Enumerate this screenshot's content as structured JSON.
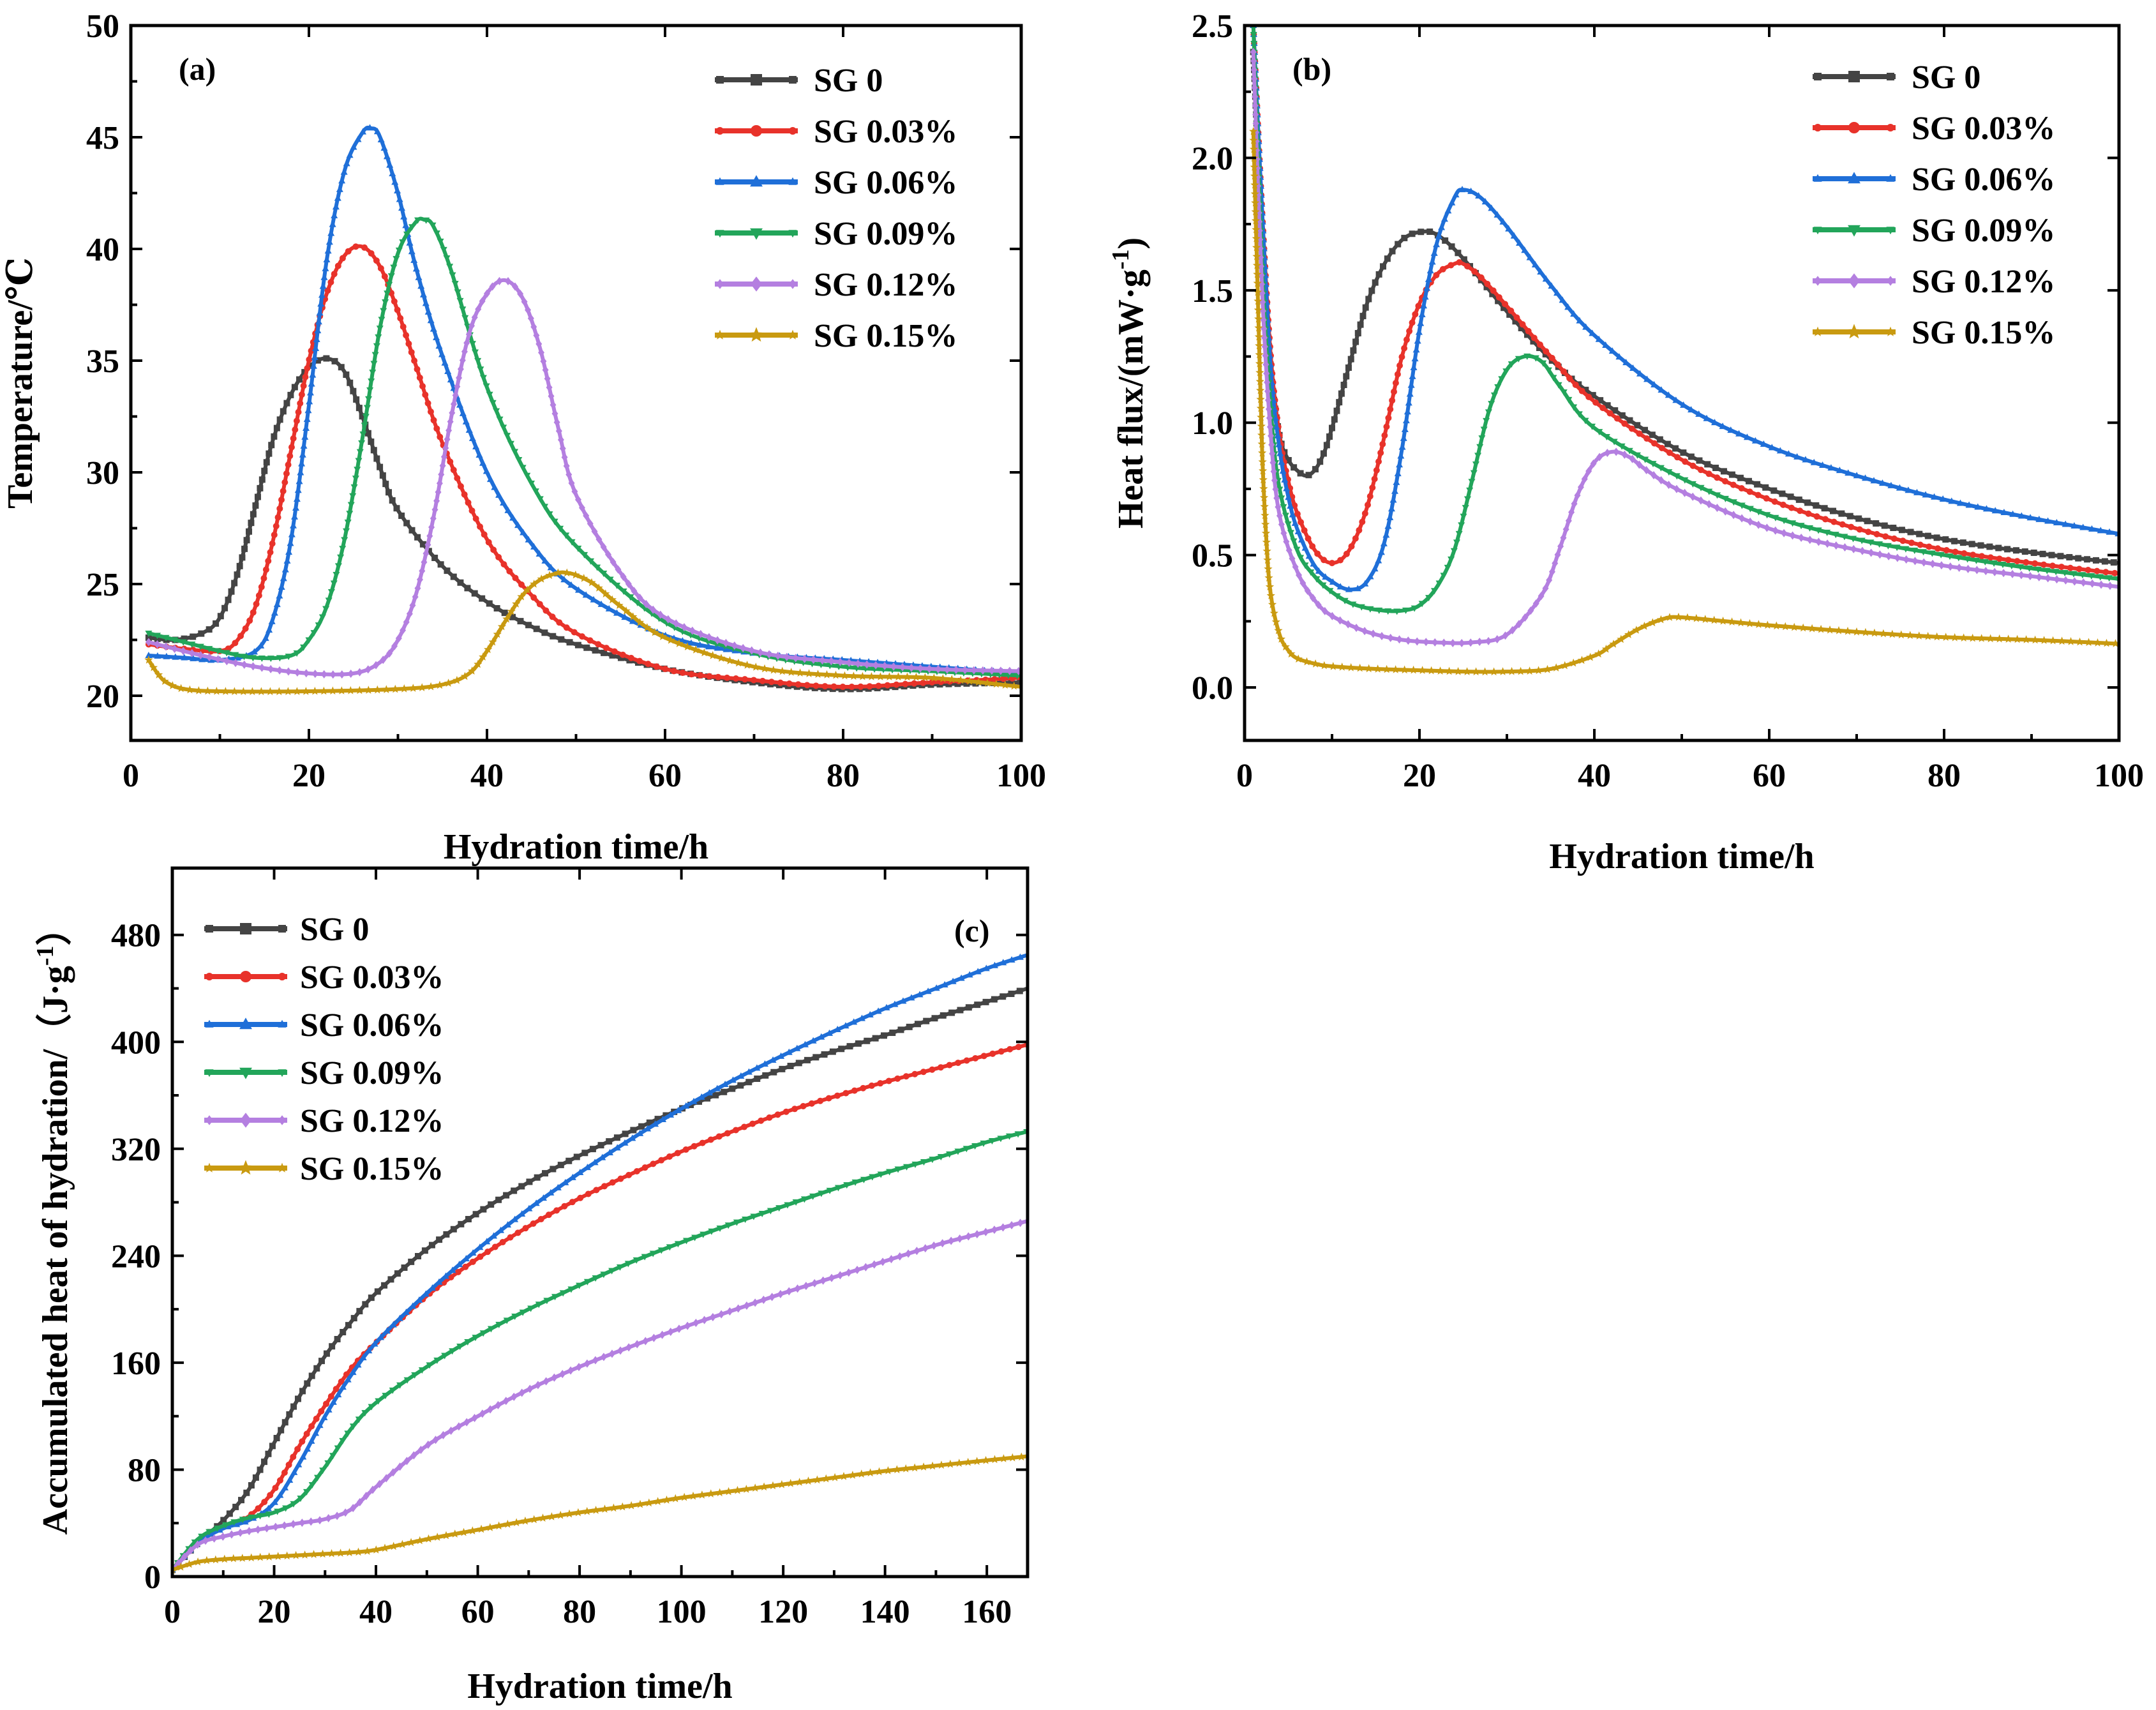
{
  "chart_data": [
    {
      "type": "line",
      "panel_label": "(a)",
      "xlabel": "Hydration time/h",
      "ylabel": "Temperature/℃",
      "xlim": [
        0,
        100
      ],
      "ylim": [
        18,
        50
      ],
      "xticks": [
        0,
        20,
        40,
        60,
        80,
        100
      ],
      "yticks": [
        20,
        25,
        30,
        35,
        40,
        45,
        50
      ],
      "legend_position": "top-right",
      "series": [
        {
          "name": "SG 0",
          "color": "#444444",
          "marker": "square",
          "x": [
            2,
            5,
            8,
            10,
            12,
            14,
            16,
            18,
            20,
            22,
            24,
            26,
            28,
            30,
            35,
            40,
            45,
            50,
            60,
            70,
            80,
            90,
            100
          ],
          "y": [
            22.6,
            22.5,
            22.8,
            23.5,
            25.5,
            28.5,
            31.5,
            33.5,
            34.7,
            35.1,
            34.5,
            32.5,
            30.2,
            28.3,
            25.8,
            24.2,
            23.1,
            22.3,
            21.2,
            20.6,
            20.3,
            20.5,
            20.6
          ]
        },
        {
          "name": "SG 0.03%",
          "color": "#e8322a",
          "marker": "circle",
          "x": [
            2,
            6,
            10,
            12,
            14,
            16,
            18,
            20,
            22,
            24,
            26,
            28,
            30,
            32,
            35,
            40,
            45,
            50,
            60,
            70,
            80,
            90,
            100
          ],
          "y": [
            22.3,
            22.1,
            22.0,
            22.5,
            24.0,
            27.0,
            31.0,
            35.0,
            38.0,
            39.7,
            40.1,
            39.2,
            37.2,
            34.8,
            31.3,
            27.0,
            24.5,
            22.8,
            21.2,
            20.7,
            20.4,
            20.6,
            20.8
          ]
        },
        {
          "name": "SG 0.06%",
          "color": "#1f6fd8",
          "marker": "triangle",
          "x": [
            2,
            6,
            10,
            14,
            16,
            18,
            20,
            22,
            24,
            26,
            27,
            28,
            30,
            32,
            35,
            40,
            45,
            50,
            60,
            70,
            80,
            90,
            100
          ],
          "y": [
            21.8,
            21.7,
            21.6,
            22.0,
            23.5,
            27.0,
            33.0,
            39.5,
            43.5,
            45.2,
            45.4,
            45.0,
            42.5,
            39.2,
            35.2,
            30.0,
            26.8,
            24.8,
            22.7,
            21.9,
            21.6,
            21.3,
            21.0
          ]
        },
        {
          "name": "SG 0.09%",
          "color": "#22a55a",
          "marker": "triangle-down",
          "x": [
            2,
            6,
            10,
            14,
            18,
            20,
            22,
            24,
            26,
            28,
            30,
            32,
            33,
            34,
            36,
            40,
            45,
            50,
            60,
            70,
            80,
            90,
            100
          ],
          "y": [
            22.8,
            22.4,
            22.0,
            21.7,
            21.8,
            22.5,
            24.0,
            27.0,
            31.5,
            36.5,
            39.8,
            41.2,
            41.3,
            41.0,
            39.0,
            33.8,
            29.5,
            26.7,
            23.3,
            21.9,
            21.3,
            21.1,
            20.9
          ]
        },
        {
          "name": "SG 0.12%",
          "color": "#b47fe0",
          "marker": "diamond",
          "x": [
            2,
            8,
            14,
            20,
            25,
            28,
            30,
            32,
            34,
            36,
            38,
            40,
            42,
            44,
            46,
            48,
            50,
            55,
            60,
            70,
            80,
            90,
            100
          ],
          "y": [
            22.4,
            21.8,
            21.3,
            21.0,
            21.0,
            21.5,
            22.5,
            24.5,
            28.0,
            32.5,
            36.2,
            38.0,
            38.6,
            37.8,
            35.5,
            32.0,
            29.0,
            25.5,
            23.5,
            22.0,
            21.5,
            21.2,
            21.1
          ]
        },
        {
          "name": "SG 0.15%",
          "color": "#c99a10",
          "marker": "star",
          "x": [
            2,
            3,
            4,
            6,
            10,
            20,
            30,
            35,
            38,
            40,
            42,
            44,
            46,
            48,
            49,
            50,
            52,
            55,
            60,
            70,
            80,
            90,
            100
          ],
          "y": [
            21.6,
            21.0,
            20.6,
            20.3,
            20.2,
            20.2,
            20.3,
            20.5,
            21.0,
            22.0,
            23.3,
            24.5,
            25.2,
            25.5,
            25.5,
            25.4,
            25.0,
            24.0,
            22.6,
            21.3,
            20.9,
            20.8,
            20.4
          ]
        }
      ]
    },
    {
      "type": "line",
      "panel_label": "(b)",
      "xlabel": "Hydration time/h",
      "ylabel": "Heat flux/(mW·g",
      "ylabel_superscript": "-1",
      "ylabel_tail": ")",
      "xlim": [
        0,
        100
      ],
      "ylim": [
        -0.2,
        2.5
      ],
      "xticks": [
        0,
        20,
        40,
        60,
        80,
        100
      ],
      "yticks": [
        0.0,
        0.5,
        1.0,
        1.5,
        2.0,
        2.5
      ],
      "ytick_labels": [
        "0.0",
        "0.5",
        "1.0",
        "1.5",
        "2.0",
        "2.5"
      ],
      "legend_position": "top-right",
      "series": [
        {
          "name": "SG 0",
          "color": "#444444",
          "marker": "square",
          "x": [
            1,
            2,
            3,
            4,
            5,
            6,
            7,
            8,
            9,
            10,
            12,
            14,
            16,
            18,
            20,
            22,
            25,
            30,
            35,
            40,
            50,
            60,
            70,
            80,
            90,
            100
          ],
          "y": [
            2.4,
            1.7,
            1.2,
            0.95,
            0.86,
            0.82,
            0.8,
            0.82,
            0.88,
            0.98,
            1.22,
            1.45,
            1.6,
            1.69,
            1.72,
            1.71,
            1.62,
            1.42,
            1.24,
            1.1,
            0.89,
            0.75,
            0.64,
            0.56,
            0.51,
            0.47
          ]
        },
        {
          "name": "SG 0.03%",
          "color": "#e8322a",
          "marker": "circle",
          "x": [
            1,
            2,
            3,
            4,
            5,
            6,
            8,
            10,
            12,
            14,
            16,
            18,
            20,
            22,
            24,
            25,
            27,
            30,
            35,
            40,
            50,
            60,
            70,
            80,
            90,
            100
          ],
          "y": [
            2.5,
            1.8,
            1.25,
            0.95,
            0.78,
            0.66,
            0.52,
            0.47,
            0.52,
            0.68,
            0.95,
            1.25,
            1.45,
            1.56,
            1.6,
            1.6,
            1.55,
            1.44,
            1.25,
            1.08,
            0.86,
            0.71,
            0.6,
            0.52,
            0.47,
            0.43
          ]
        },
        {
          "name": "SG 0.06%",
          "color": "#1f6fd8",
          "marker": "triangle",
          "x": [
            1,
            2,
            3,
            4,
            5,
            6,
            8,
            10,
            12,
            14,
            16,
            18,
            20,
            22,
            24,
            25,
            27,
            30,
            35,
            40,
            50,
            60,
            70,
            80,
            90,
            100
          ],
          "y": [
            2.5,
            1.8,
            1.2,
            0.9,
            0.72,
            0.6,
            0.46,
            0.4,
            0.37,
            0.4,
            0.55,
            0.9,
            1.35,
            1.68,
            1.85,
            1.88,
            1.85,
            1.74,
            1.52,
            1.33,
            1.07,
            0.91,
            0.8,
            0.71,
            0.64,
            0.58
          ]
        },
        {
          "name": "SG 0.09%",
          "color": "#22a55a",
          "marker": "triangle-down",
          "x": [
            1,
            2,
            3,
            4,
            6,
            8,
            10,
            12,
            14,
            16,
            18,
            20,
            22,
            24,
            26,
            28,
            30,
            32,
            34,
            36,
            40,
            50,
            60,
            70,
            80,
            90,
            100
          ],
          "y": [
            2.5,
            1.6,
            1.05,
            0.75,
            0.52,
            0.42,
            0.36,
            0.32,
            0.3,
            0.29,
            0.29,
            0.31,
            0.38,
            0.52,
            0.78,
            1.05,
            1.2,
            1.25,
            1.23,
            1.14,
            0.98,
            0.79,
            0.65,
            0.56,
            0.5,
            0.45,
            0.41
          ]
        },
        {
          "name": "SG 0.12%",
          "color": "#b47fe0",
          "marker": "diamond",
          "x": [
            1,
            2,
            3,
            4,
            6,
            8,
            10,
            14,
            18,
            22,
            26,
            30,
            34,
            36,
            38,
            40,
            42,
            44,
            46,
            50,
            60,
            70,
            80,
            90,
            100
          ],
          "y": [
            2.4,
            1.5,
            0.95,
            0.65,
            0.44,
            0.33,
            0.27,
            0.21,
            0.18,
            0.17,
            0.17,
            0.2,
            0.35,
            0.52,
            0.72,
            0.85,
            0.89,
            0.87,
            0.82,
            0.74,
            0.6,
            0.52,
            0.46,
            0.42,
            0.38
          ]
        },
        {
          "name": "SG 0.15%",
          "color": "#c99a10",
          "marker": "star",
          "x": [
            1,
            1.5,
            2,
            2.5,
            3,
            4,
            5,
            6,
            8,
            10,
            15,
            20,
            25,
            30,
            35,
            40,
            42,
            45,
            48,
            50,
            55,
            60,
            70,
            80,
            90,
            100
          ],
          "y": [
            2.1,
            1.5,
            0.9,
            0.55,
            0.35,
            0.2,
            0.14,
            0.11,
            0.09,
            0.08,
            0.07,
            0.065,
            0.06,
            0.06,
            0.07,
            0.12,
            0.16,
            0.22,
            0.26,
            0.265,
            0.25,
            0.235,
            0.21,
            0.19,
            0.18,
            0.165
          ]
        }
      ]
    },
    {
      "type": "line",
      "panel_label": "(c)",
      "xlabel": "Hydration time/h",
      "ylabel": "Accumulated heat of hydration/（J·g",
      "ylabel_superscript": "-1",
      "ylabel_tail": "）",
      "xlim": [
        0,
        168
      ],
      "ylim": [
        0,
        530
      ],
      "xticks": [
        0,
        20,
        40,
        60,
        80,
        100,
        120,
        140,
        160
      ],
      "yticks": [
        0,
        80,
        160,
        240,
        320,
        400,
        480
      ],
      "legend_position": "top-left",
      "series": [
        {
          "name": "SG 0",
          "color": "#444444",
          "marker": "square",
          "x": [
            0,
            5,
            10,
            15,
            20,
            25,
            30,
            35,
            40,
            50,
            60,
            70,
            80,
            90,
            100,
            110,
            120,
            130,
            140,
            150,
            160,
            168
          ],
          "y": [
            5,
            25,
            42,
            65,
            100,
            135,
            165,
            190,
            212,
            245,
            272,
            295,
            315,
            333,
            350,
            365,
            380,
            393,
            405,
            418,
            430,
            440
          ]
        },
        {
          "name": "SG 0.03%",
          "color": "#e8322a",
          "marker": "circle",
          "x": [
            0,
            5,
            10,
            15,
            20,
            25,
            30,
            35,
            40,
            50,
            60,
            70,
            80,
            90,
            100,
            110,
            120,
            130,
            140,
            150,
            160,
            168
          ],
          "y": [
            5,
            25,
            37,
            45,
            65,
            98,
            128,
            155,
            175,
            210,
            238,
            262,
            283,
            301,
            318,
            333,
            347,
            359,
            370,
            380,
            390,
            398
          ]
        },
        {
          "name": "SG 0.06%",
          "color": "#1f6fd8",
          "marker": "triangle",
          "x": [
            0,
            5,
            10,
            15,
            20,
            25,
            30,
            35,
            40,
            50,
            60,
            70,
            80,
            90,
            100,
            110,
            120,
            130,
            140,
            150,
            160,
            168
          ],
          "y": [
            5,
            25,
            36,
            42,
            55,
            85,
            120,
            150,
            175,
            212,
            245,
            275,
            302,
            327,
            350,
            371,
            390,
            408,
            425,
            440,
            455,
            465
          ]
        },
        {
          "name": "SG 0.09%",
          "color": "#22a55a",
          "marker": "triangle-down",
          "x": [
            0,
            5,
            10,
            15,
            20,
            25,
            30,
            35,
            40,
            50,
            60,
            70,
            80,
            90,
            100,
            110,
            120,
            130,
            140,
            150,
            160,
            168
          ],
          "y": [
            5,
            28,
            38,
            44,
            48,
            58,
            82,
            110,
            130,
            157,
            180,
            200,
            218,
            235,
            250,
            264,
            277,
            290,
            302,
            313,
            325,
            333
          ]
        },
        {
          "name": "SG 0.12%",
          "color": "#b47fe0",
          "marker": "diamond",
          "x": [
            0,
            5,
            10,
            15,
            20,
            25,
            30,
            35,
            40,
            50,
            60,
            70,
            80,
            90,
            100,
            110,
            120,
            130,
            140,
            150,
            160,
            168
          ],
          "y": [
            5,
            24,
            30,
            34,
            37,
            40,
            43,
            50,
            67,
            98,
            120,
            140,
            157,
            172,
            186,
            199,
            212,
            224,
            236,
            248,
            258,
            266
          ]
        },
        {
          "name": "SG 0.15%",
          "color": "#c99a10",
          "marker": "star",
          "x": [
            0,
            5,
            10,
            15,
            20,
            25,
            30,
            35,
            40,
            50,
            60,
            70,
            80,
            90,
            100,
            110,
            120,
            130,
            140,
            150,
            160,
            168
          ],
          "y": [
            5,
            11,
            13,
            14,
            15,
            16,
            17,
            18,
            20,
            28,
            35,
            42,
            48,
            53,
            59,
            64,
            69,
            74,
            79,
            83,
            87,
            90
          ]
        }
      ]
    }
  ]
}
